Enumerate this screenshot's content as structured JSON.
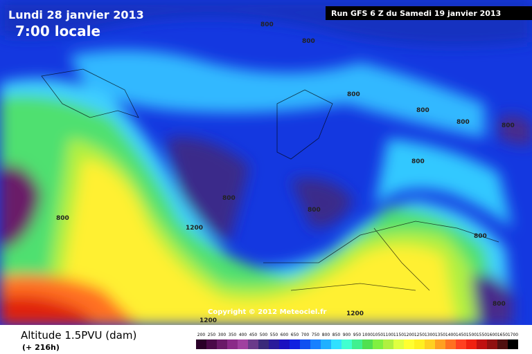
{
  "header": {
    "date": "Lundi 28 janvier 2013",
    "time": "7:00 locale",
    "run": "Run GFS 6 Z du Samedi 19 janvier 2013"
  },
  "copyright": "Copyright © 2012 Meteociel.fr",
  "footer": {
    "title": "Altitude 1.5PVU (dam)",
    "lead": "(+ 216h)"
  },
  "contour_labels": [
    "800",
    "800",
    "800",
    "800",
    "800",
    "800",
    "800",
    "800",
    "800",
    "800",
    "800",
    "800",
    "1200",
    "1200",
    "1200"
  ],
  "colorbar": {
    "labels": [
      200,
      250,
      300,
      350,
      400,
      450,
      500,
      550,
      600,
      650,
      700,
      750,
      800,
      850,
      900,
      950,
      1000,
      1050,
      1100,
      1150,
      1200,
      1250,
      1300,
      1350,
      1400,
      1450,
      1500,
      1550,
      1600,
      1650,
      1700
    ],
    "colors": [
      "#2a0028",
      "#4a0a48",
      "#6a1a68",
      "#8a2a88",
      "#a040a0",
      "#6a3a8a",
      "#3a2a7a",
      "#2a1a9a",
      "#1a10c0",
      "#1020e0",
      "#1050f0",
      "#1880ff",
      "#20b0ff",
      "#30e0ff",
      "#40ffd0",
      "#40f090",
      "#50e050",
      "#80f040",
      "#b0f040",
      "#e0ff40",
      "#ffff30",
      "#fff020",
      "#ffd020",
      "#ffa020",
      "#ff7020",
      "#ff4020",
      "#f02010",
      "#c01010",
      "#901010",
      "#501010",
      "#000000"
    ]
  }
}
